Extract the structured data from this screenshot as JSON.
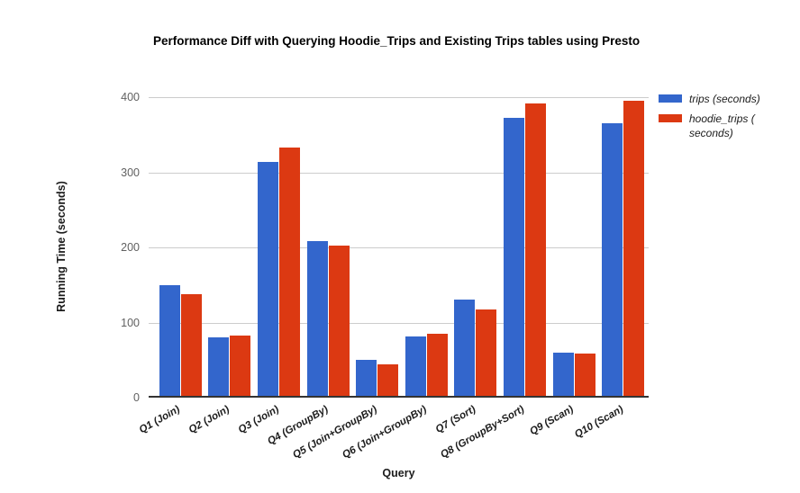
{
  "page": {
    "background": "#ffffff"
  },
  "chart_data": {
    "type": "bar",
    "title": "Performance Diff with Querying Hoodie_Trips and Existing Trips tables using Presto",
    "xlabel": "Query",
    "ylabel": "Running Time (seconds)",
    "ylim": [
      0,
      400
    ],
    "yticks": [
      0,
      100,
      200,
      300,
      400
    ],
    "grid": true,
    "legend_position": "right",
    "categories": [
      "Q1 (Join)",
      "Q2 (Join)",
      "Q3 (Join)",
      "Q4 (GroupBy)",
      "Q5 (Join+GroupBy)",
      "Q6 (Join+GroupBy)",
      "Q7 (Sort)",
      "Q8 (GroupBy+Sort)",
      "Q9 (Scan)",
      "Q10 (Scan)"
    ],
    "series": [
      {
        "key": "trips",
        "name": "trips (seconds)",
        "color": "#3366CC",
        "values": [
          150,
          80,
          314,
          208,
          50,
          81,
          130,
          373,
          60,
          365
        ]
      },
      {
        "key": "hoodie_trips",
        "name": "hoodie_trips (seconds)",
        "color": "#DC3912",
        "values": [
          138,
          83,
          333,
          202,
          44,
          85,
          117,
          392,
          59,
          395
        ]
      }
    ]
  },
  "legend": {
    "items": [
      {
        "label": "trips (seconds)",
        "color": "#3366CC"
      },
      {
        "label": "hoodie_trips ( seconds)",
        "color": "#DC3912"
      }
    ]
  },
  "axis": {
    "tick_color": "#616161",
    "grid_color": "#cccccc",
    "baseline_color": "#333333"
  }
}
